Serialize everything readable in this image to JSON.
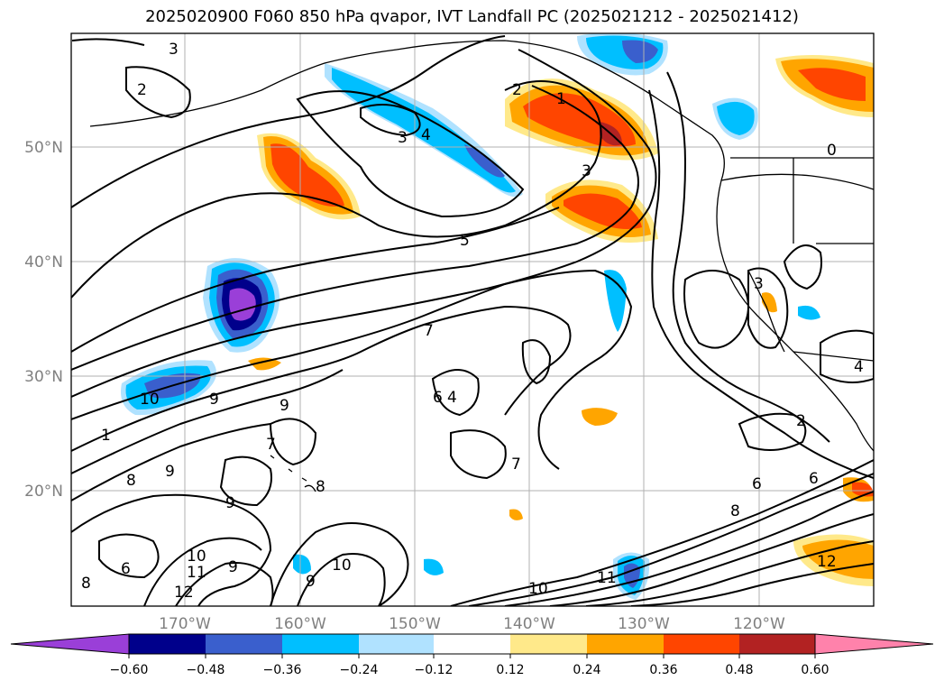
{
  "title": "2025020900 F060 850 hPa qvapor, IVT Landfall PC (2025021212 - 2025021412)",
  "lat_labels": [
    "50°N",
    "40°N",
    "30°N",
    "20°N"
  ],
  "lon_labels": [
    "170°W",
    "160°W",
    "150°W",
    "140°W",
    "130°W",
    "120°W"
  ],
  "contour_labels": [
    "3",
    "2",
    "3",
    "4",
    "2",
    "1",
    "3",
    "5",
    "7",
    "10",
    "9",
    "1",
    "8",
    "9",
    "6",
    "9",
    "7",
    "8",
    "9",
    "6",
    "8",
    "10",
    "11",
    "12",
    "9",
    "10",
    "9",
    "7",
    "10",
    "11",
    "8",
    "2",
    "6",
    "6",
    "12",
    "3",
    "4",
    "4",
    "0"
  ],
  "colorbar": {
    "tick_labels": [
      "−0.60",
      "−0.48",
      "−0.36",
      "−0.24",
      "−0.12",
      "0.12",
      "0.24",
      "0.36",
      "0.48",
      "0.60"
    ],
    "colors": [
      "#9a3fd8",
      "#00008b",
      "#3a5fcd",
      "#00bfff",
      "#b0e2ff",
      "#ffffff",
      "#ffe98a",
      "#ffa500",
      "#ff4500",
      "#b22222",
      "#ff82ab"
    ]
  },
  "colors": {
    "gridline": "#b0b0b0",
    "contour": "#000000",
    "axis_label": "#808080"
  }
}
